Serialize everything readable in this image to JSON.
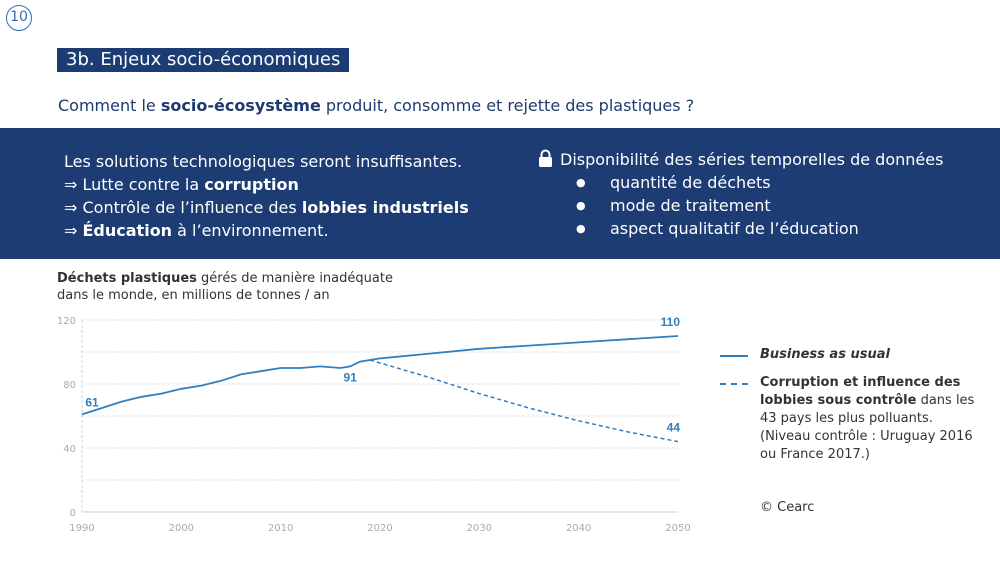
{
  "page_number": "10",
  "section_title": "3b. Enjeux socio-économiques",
  "question": {
    "before": "Comment le ",
    "bold": "socio-écosystème",
    "after": " produit, consomme et rejette des plastiques ?"
  },
  "band": {
    "left": {
      "line1": "Les solutions technologiques seront insuffisantes.",
      "line2_prefix": "⇒ Lutte contre la ",
      "line2_bold": "corruption",
      "line3_prefix": "⇒ Contrôle de l’influence des ",
      "line3_bold": "lobbies industriels",
      "line4_prefix": "⇒ ",
      "line4_bold": "Éducation",
      "line4_suffix": " à l’environnement."
    },
    "right": {
      "title": "Disponibilité des séries temporelles de données",
      "bullets": [
        "quantité de déchets",
        "mode de traitement",
        "aspect qualitatif de l’éducation"
      ]
    }
  },
  "chart_title": {
    "bold": "Déchets plastiques",
    "rest_line1": " gérés de manière inadéquate",
    "line2": "dans le monde, en millions de tonnes / an"
  },
  "legend": {
    "bau": "Business as usual",
    "ctrl_bold": "Corruption et influence des lobbies sous contrôle",
    "ctrl_rest": " dans les 43 pays les plus polluants. (Niveau contrôle : Uruguay 2016 ou France 2017.)"
  },
  "copyright": "© Cearc",
  "colors": {
    "navy": "#1c3c73",
    "line": "#2f7fc1",
    "grid": "#e3e3e3"
  },
  "chart_data": {
    "type": "line",
    "xlim": [
      1990,
      2050
    ],
    "ylim": [
      0,
      120
    ],
    "xticks": [
      1990,
      2000,
      2010,
      2020,
      2030,
      2040,
      2050
    ],
    "yticks": [
      0,
      40,
      80,
      120
    ],
    "series": [
      {
        "name": "Business as usual",
        "style": "solid",
        "x": [
          1990,
          1992,
          1994,
          1996,
          1998,
          2000,
          2002,
          2004,
          2006,
          2008,
          2010,
          2012,
          2014,
          2016,
          2017,
          2018,
          2020,
          2025,
          2030,
          2035,
          2040,
          2045,
          2050
        ],
        "y": [
          61,
          65,
          69,
          72,
          74,
          77,
          79,
          82,
          86,
          88,
          90,
          90,
          91,
          90,
          91,
          94,
          96,
          99,
          102,
          104,
          106,
          108,
          110
        ]
      },
      {
        "name": "Corruption et influence des lobbies sous contrôle",
        "style": "dashed",
        "x": [
          2019,
          2025,
          2030,
          2035,
          2040,
          2045,
          2050
        ],
        "y": [
          95,
          84,
          74,
          65,
          57,
          50,
          44
        ]
      }
    ],
    "annotations": [
      {
        "x": 1990,
        "y": 61,
        "text": "61"
      },
      {
        "x": 2017,
        "y": 91,
        "text": "91"
      },
      {
        "x": 2050,
        "y": 110,
        "text": "110"
      },
      {
        "x": 2050,
        "y": 44,
        "text": "44"
      }
    ]
  }
}
